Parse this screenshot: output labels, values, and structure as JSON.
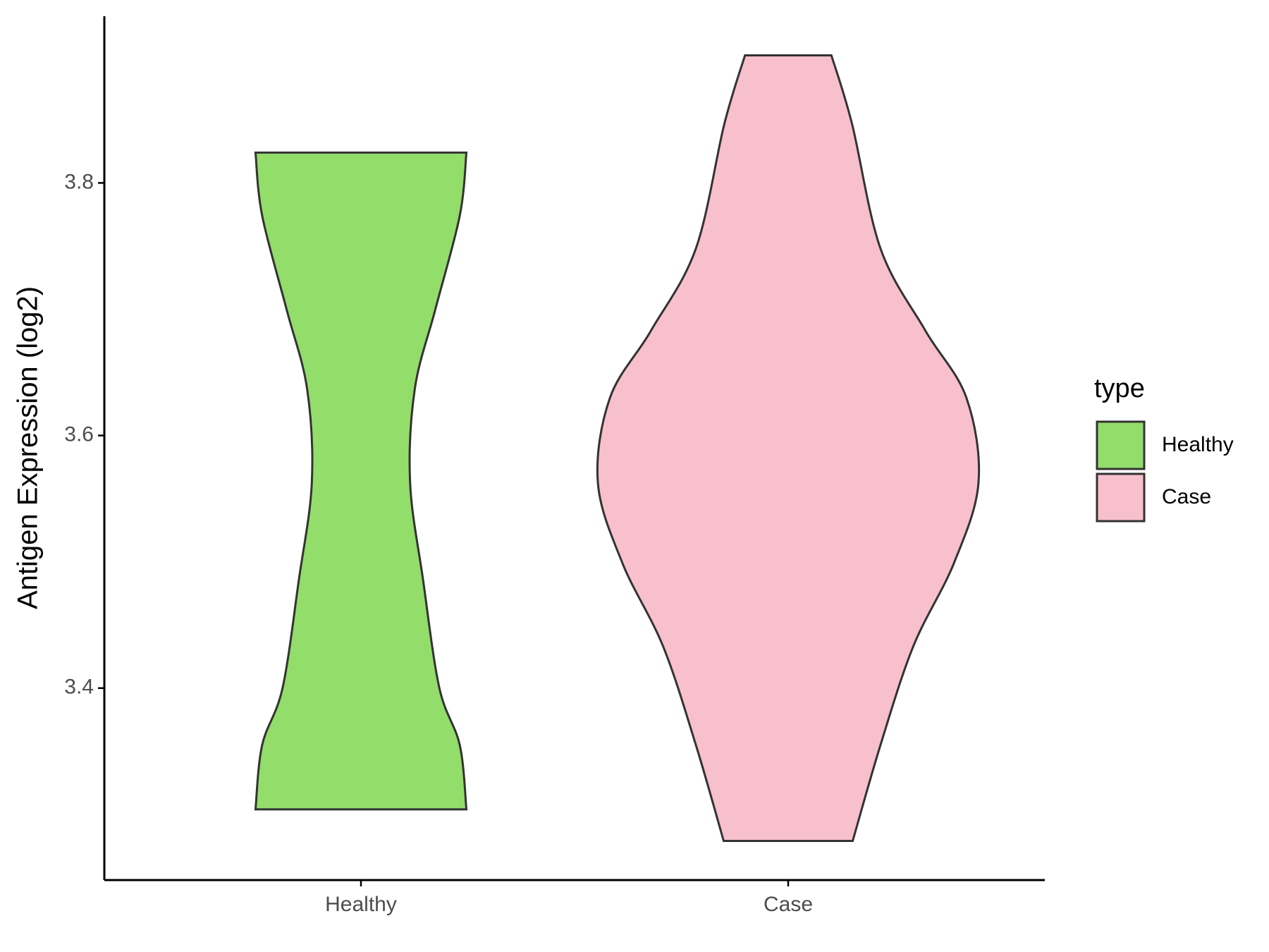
{
  "chart_data": {
    "type": "violin",
    "y_label": "Antigen Expression (log2)",
    "categories": [
      "Healthy",
      "Case"
    ],
    "legend_title": "type",
    "legend_position": "right",
    "ylim": [
      3.248,
      3.932
    ],
    "yticks": [
      3.4,
      3.6,
      3.8
    ],
    "series": [
      {
        "name": "Healthy",
        "color": "#93DD6A",
        "y": [
          3.824,
          3.774,
          3.7,
          3.637,
          3.563,
          3.486,
          3.4,
          3.355,
          3.304
        ],
        "density": [
          0.554,
          0.519,
          0.391,
          0.283,
          0.258,
          0.326,
          0.412,
          0.519,
          0.554
        ]
      },
      {
        "name": "Case",
        "color": "#F7C0CC",
        "y": [
          3.901,
          3.847,
          3.748,
          3.683,
          3.63,
          3.563,
          3.499,
          3.433,
          3.355,
          3.279
        ],
        "density": [
          0.227,
          0.335,
          0.485,
          0.721,
          0.936,
          1.0,
          0.871,
          0.657,
          0.485,
          0.339
        ]
      }
    ]
  }
}
